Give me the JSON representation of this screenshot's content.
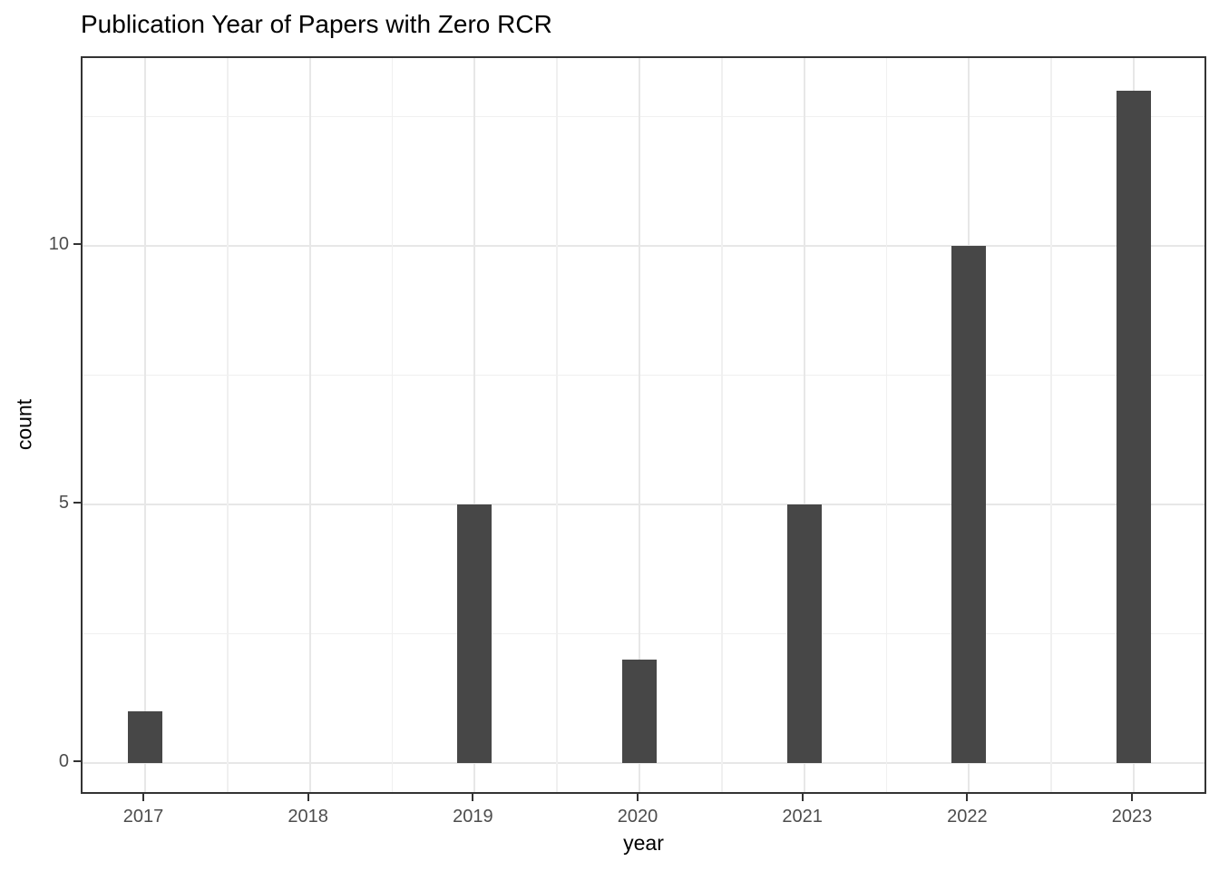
{
  "chart_data": {
    "type": "bar",
    "title": "Publication Year of Papers with Zero RCR",
    "xlabel": "year",
    "ylabel": "count",
    "categories": [
      "2017",
      "2018",
      "2019",
      "2020",
      "2021",
      "2022",
      "2023"
    ],
    "values": [
      1,
      0,
      5,
      2,
      5,
      10,
      13
    ],
    "ylim": [
      -0.65,
      13.65
    ],
    "yticks": [
      0,
      5,
      10
    ],
    "ytick_labels": [
      "0",
      "5",
      "10"
    ],
    "y_minor_ticks": [
      2.5,
      7.5,
      12.5
    ],
    "grid": "major and minor, light gray",
    "legend": false,
    "colors": {
      "bar_fill": "#474747",
      "grid_major": "#e7e7e7",
      "grid_minor": "#f0f0f0",
      "panel_border": "#333333",
      "tick_mark": "#333333",
      "axis_text": "#4d4d4d",
      "title_text": "#000000",
      "background": "#ffffff"
    }
  }
}
